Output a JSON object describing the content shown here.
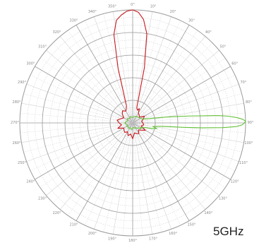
{
  "caption": "5GHz",
  "colors": {
    "background": "#ffffff",
    "grid_major": "#9a9a9a",
    "grid_minor": "#d3d3d3",
    "series_red": "#c8191e",
    "series_green": "#66c23a"
  },
  "chart_data": {
    "type": "polar",
    "title": "",
    "angle_unit": "degrees",
    "angle_zero": "top",
    "angle_direction": "clockwise",
    "angle_ticks": [
      0,
      10,
      20,
      30,
      40,
      50,
      60,
      70,
      80,
      90,
      100,
      110,
      120,
      130,
      140,
      150,
      160,
      170,
      180,
      190,
      200,
      210,
      220,
      230,
      240,
      250,
      260,
      270,
      280,
      290,
      300,
      310,
      320,
      330,
      340,
      350
    ],
    "angle_tick_labels": [
      "0°",
      "10°",
      "20°",
      "30°",
      "40°",
      "50°",
      "60°",
      "70°",
      "80°",
      "90°",
      "100°",
      "110°",
      "120°",
      "130°",
      "140°",
      "150°",
      "160°",
      "170°",
      "180°",
      "190°",
      "200°",
      "210°",
      "220°",
      "230°",
      "240°",
      "250°",
      "260°",
      "270°",
      "280°",
      "290°",
      "300°",
      "310°",
      "320°",
      "330°",
      "340°",
      "350°"
    ],
    "radial_range": [
      0,
      1
    ],
    "radial_major_rings": 5,
    "radial_minor_rings": 15,
    "grid": true,
    "legend": "none",
    "series": [
      {
        "color": "#c8191e",
        "angles": [
          0,
          3,
          6,
          9,
          12,
          15,
          20,
          25,
          30,
          40,
          50,
          60,
          70,
          80,
          90,
          100,
          110,
          120,
          130,
          140,
          150,
          160,
          170,
          180,
          190,
          200,
          210,
          220,
          230,
          240,
          250,
          260,
          270,
          280,
          290,
          300,
          310,
          320,
          330,
          340,
          345,
          348,
          351,
          354,
          357,
          360
        ],
        "r": [
          1.0,
          0.98,
          0.92,
          0.8,
          0.5,
          0.14,
          0.12,
          0.14,
          0.1,
          0.09,
          0.08,
          0.12,
          0.1,
          0.08,
          0.09,
          0.1,
          0.08,
          0.13,
          0.1,
          0.08,
          0.11,
          0.1,
          0.09,
          0.14,
          0.1,
          0.12,
          0.09,
          0.11,
          0.1,
          0.09,
          0.14,
          0.1,
          0.12,
          0.14,
          0.11,
          0.09,
          0.12,
          0.14,
          0.12,
          0.16,
          0.5,
          0.8,
          0.92,
          0.96,
          0.99,
          1.0
        ]
      },
      {
        "color": "#66c23a",
        "angles": [
          0,
          20,
          40,
          60,
          70,
          75,
          80,
          83,
          85,
          86,
          87,
          88,
          89,
          90,
          91,
          92,
          93,
          94,
          95,
          96,
          98,
          100,
          103,
          106,
          110,
          115,
          120,
          125,
          130,
          140,
          150,
          160,
          170,
          180,
          190,
          200,
          210,
          220,
          230,
          240,
          250,
          260,
          270,
          280,
          290,
          300,
          310,
          320,
          330,
          340,
          350,
          360
        ],
        "r": [
          0.05,
          0.06,
          0.07,
          0.08,
          0.1,
          0.15,
          0.3,
          0.5,
          0.75,
          0.85,
          0.92,
          0.97,
          1.0,
          0.99,
          0.97,
          0.92,
          0.8,
          0.62,
          0.45,
          0.32,
          0.22,
          0.18,
          0.22,
          0.18,
          0.12,
          0.1,
          0.08,
          0.09,
          0.07,
          0.06,
          0.05,
          0.05,
          0.04,
          0.05,
          0.06,
          0.05,
          0.05,
          0.06,
          0.05,
          0.06,
          0.05,
          0.06,
          0.07,
          0.06,
          0.05,
          0.05,
          0.06,
          0.05,
          0.05,
          0.06,
          0.05,
          0.05
        ]
      }
    ]
  }
}
